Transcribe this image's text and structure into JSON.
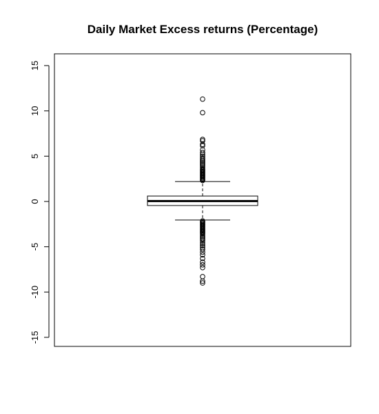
{
  "chart_data": {
    "type": "boxplot",
    "title": "Daily Market Excess returns (Percentage)",
    "xlabel": "",
    "ylabel": "",
    "ylim": [
      -16,
      16.3
    ],
    "yticks": [
      15,
      10,
      5,
      0,
      -5,
      -10,
      -15
    ],
    "ytick_labels": [
      "15",
      "10",
      "5",
      "0",
      "-5",
      "-10",
      "-15"
    ],
    "box": {
      "median": 0.05,
      "q1": -0.45,
      "q3": 0.6,
      "whisker_low": -2.05,
      "whisker_high": 2.2
    },
    "outliers_high": [
      11.3,
      9.8,
      6.85,
      6.7,
      6.3,
      6.15,
      5.7,
      5.4,
      5.2,
      5.0,
      4.8,
      4.65,
      4.5,
      4.35,
      4.2,
      4.05,
      3.9,
      3.75,
      3.6,
      3.5,
      3.4,
      3.3,
      3.2,
      3.1,
      3.0,
      2.9,
      2.8,
      2.7,
      2.6,
      2.5,
      2.4,
      2.32
    ],
    "outliers_low": [
      -2.15,
      -2.25,
      -2.35,
      -2.45,
      -2.55,
      -2.65,
      -2.75,
      -2.85,
      -2.95,
      -3.05,
      -3.15,
      -3.25,
      -3.35,
      -3.45,
      -3.55,
      -3.7,
      -3.85,
      -4.0,
      -4.15,
      -4.3,
      -4.5,
      -4.7,
      -4.9,
      -5.1,
      -5.3,
      -5.6,
      -5.9,
      -6.3,
      -6.7,
      -7.0,
      -7.3,
      -8.3,
      -8.8,
      -9.0
    ]
  }
}
